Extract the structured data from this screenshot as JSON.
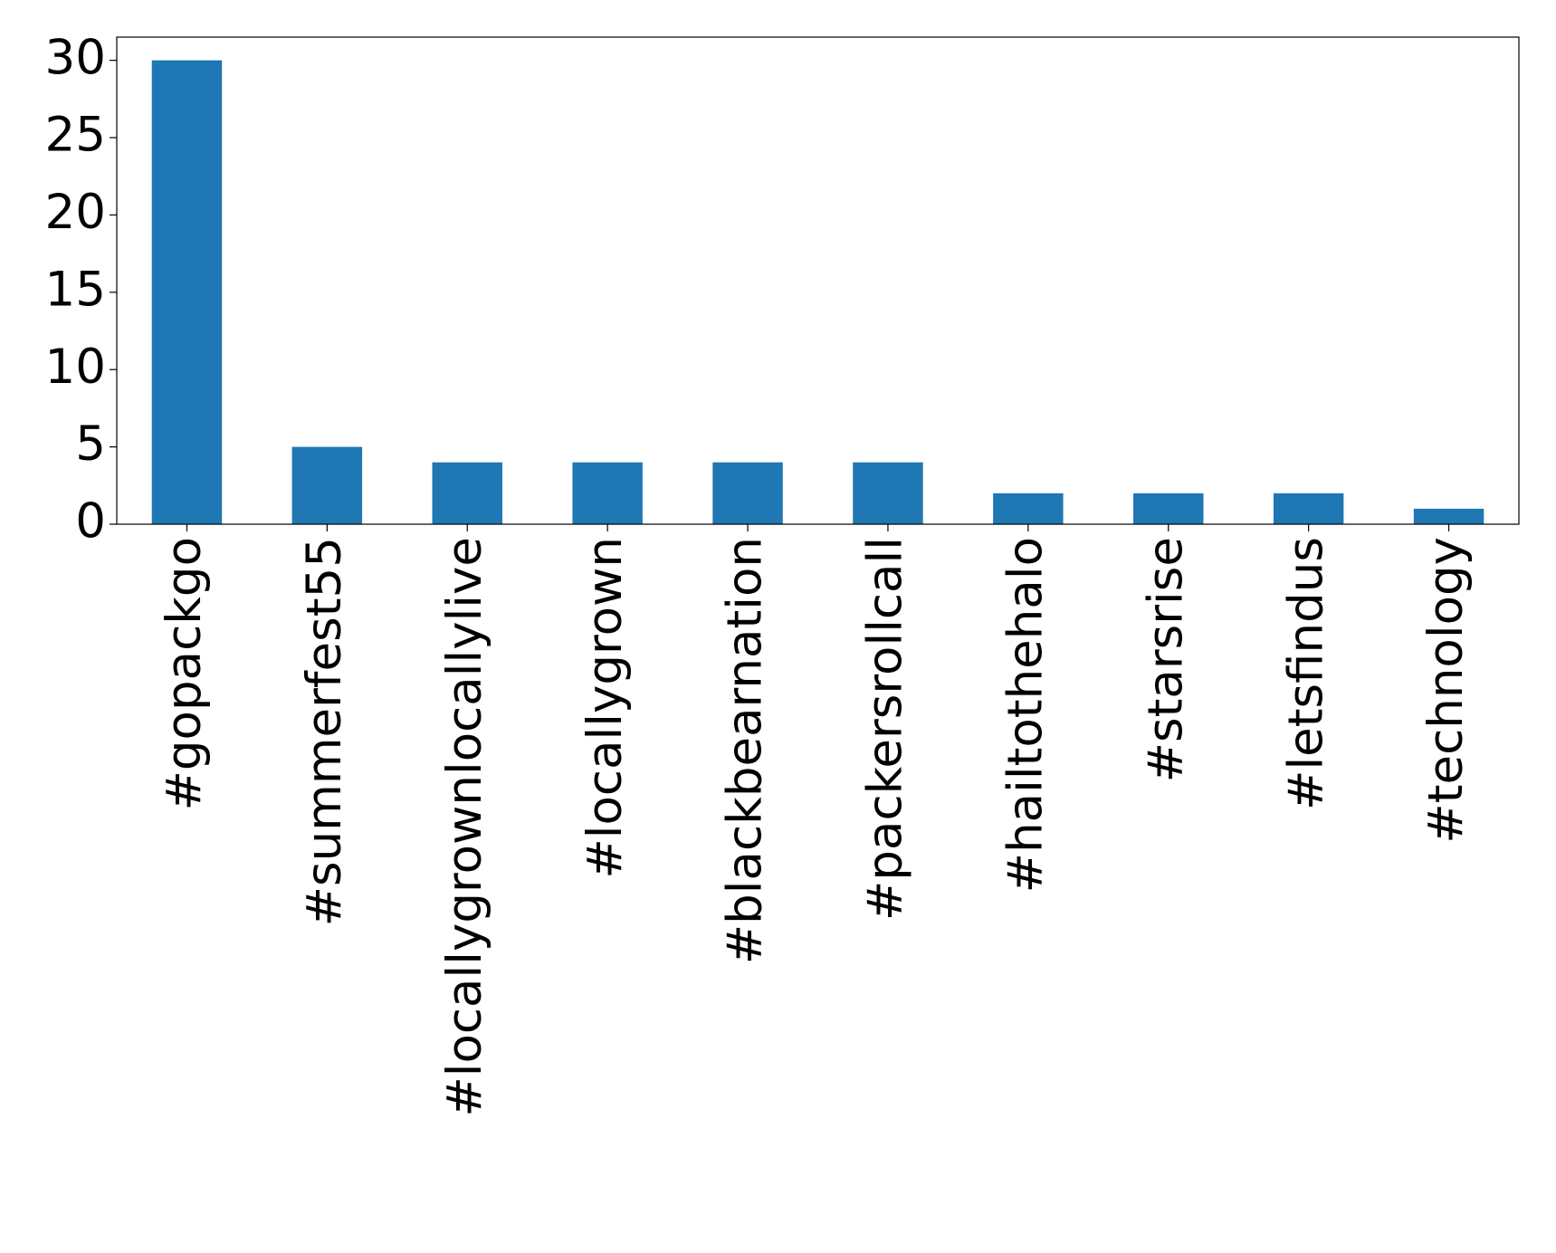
{
  "chart_data": {
    "type": "bar",
    "categories": [
      "#gopackgo",
      "#summerfest55",
      "#locallygrownlocallylive",
      "#locallygrown",
      "#blackbearnation",
      "#packersrollcall",
      "#hailtothehalo",
      "#starsrise",
      "#letsfindus",
      "#technology"
    ],
    "values": [
      30,
      5,
      4,
      4,
      4,
      4,
      2,
      2,
      2,
      1
    ],
    "color": "#1f77b4",
    "ylim": [
      0,
      31.5
    ],
    "yticks": [
      0,
      5,
      10,
      15,
      20,
      25,
      30
    ],
    "grid": false
  }
}
